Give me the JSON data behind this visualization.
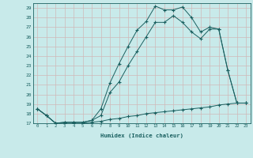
{
  "xlabel": "Humidex (Indice chaleur)",
  "bg_color": "#c8eaea",
  "line_color": "#1a6060",
  "grid_color": "#d0b8b8",
  "xlim": [
    -0.5,
    23.5
  ],
  "ylim": [
    17,
    29.5
  ],
  "yticks": [
    17,
    18,
    19,
    20,
    21,
    22,
    23,
    24,
    25,
    26,
    27,
    28,
    29
  ],
  "xticks": [
    0,
    1,
    2,
    3,
    4,
    5,
    6,
    7,
    8,
    9,
    10,
    11,
    12,
    13,
    14,
    15,
    16,
    17,
    18,
    19,
    20,
    21,
    22,
    23
  ],
  "line1_x": [
    0,
    1,
    2,
    3,
    4,
    5,
    6,
    7,
    8,
    9,
    10,
    11,
    12,
    13,
    14,
    15,
    16,
    17,
    18,
    19,
    20,
    21,
    22,
    23
  ],
  "line1_y": [
    18.5,
    17.8,
    17.0,
    17.1,
    17.1,
    17.1,
    17.3,
    18.5,
    21.2,
    23.2,
    25.0,
    26.7,
    27.6,
    29.2,
    28.8,
    28.8,
    29.1,
    28.0,
    26.5,
    27.0,
    26.8,
    22.5,
    19.1,
    19.1
  ],
  "line2_x": [
    0,
    1,
    2,
    3,
    4,
    5,
    6,
    7,
    8,
    9,
    10,
    11,
    12,
    13,
    14,
    15,
    16,
    17,
    18,
    19,
    20,
    21,
    22,
    23
  ],
  "line2_y": [
    18.5,
    17.8,
    17.0,
    17.1,
    17.1,
    17.1,
    17.3,
    17.8,
    20.2,
    21.3,
    23.0,
    24.5,
    26.0,
    27.5,
    27.5,
    28.2,
    27.5,
    26.5,
    25.8,
    26.8,
    26.8,
    22.5,
    19.1,
    19.1
  ],
  "line3_x": [
    0,
    1,
    2,
    3,
    4,
    5,
    6,
    7,
    8,
    9,
    10,
    11,
    12,
    13,
    14,
    15,
    16,
    17,
    18,
    19,
    20,
    21,
    22,
    23
  ],
  "line3_y": [
    18.5,
    17.8,
    17.0,
    17.0,
    17.0,
    17.0,
    17.1,
    17.2,
    17.4,
    17.5,
    17.7,
    17.8,
    18.0,
    18.1,
    18.2,
    18.3,
    18.4,
    18.5,
    18.6,
    18.7,
    18.9,
    19.0,
    19.1,
    19.1
  ]
}
